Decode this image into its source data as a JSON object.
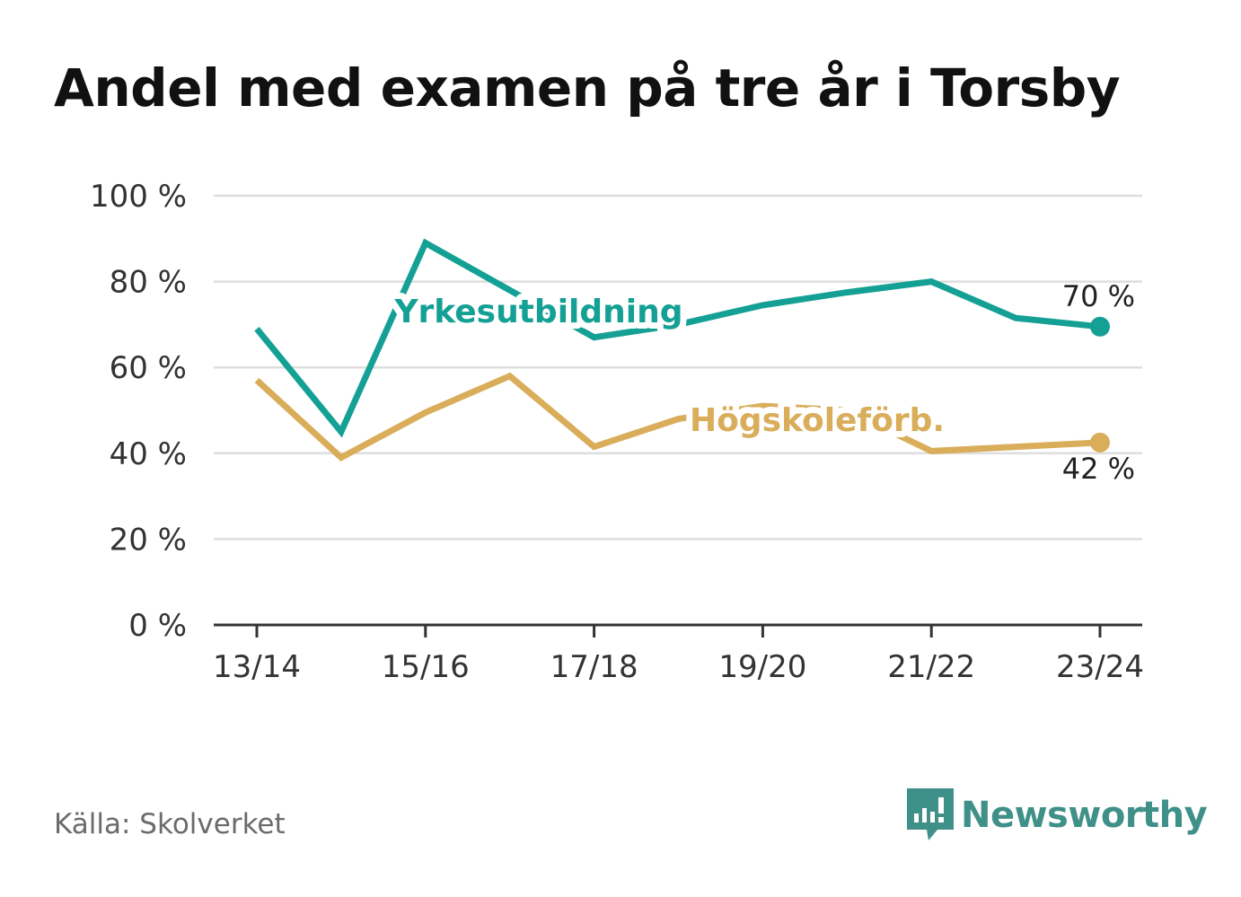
{
  "chart_data": {
    "type": "line",
    "title": "Andel med examen på tre år i Torsby",
    "x": [
      "13/14",
      "14/15",
      "15/16",
      "16/17",
      "17/18",
      "18/19",
      "19/20",
      "20/21",
      "21/22",
      "22/23",
      "23/24"
    ],
    "x_tick_labels": [
      "13/14",
      "15/16",
      "17/18",
      "19/20",
      "21/22",
      "23/24"
    ],
    "y_ticks": [
      "0 %",
      "20 %",
      "40 %",
      "60 %",
      "80 %",
      "100 %"
    ],
    "ylim": [
      0,
      100
    ],
    "grid": true,
    "series": [
      {
        "name": "Yrkesutbildning",
        "color": "#14a095",
        "values": [
          69,
          45,
          89,
          78,
          67,
          70,
          74.5,
          77.5,
          80,
          71.5,
          69.5
        ],
        "end_label": "70 %"
      },
      {
        "name": "Högskoleförb.",
        "color": "#d9ad5a",
        "values": [
          57,
          39,
          49.5,
          58,
          41.5,
          48,
          51,
          50,
          40.5,
          41.5,
          42.5
        ],
        "end_label": "42 %"
      }
    ]
  },
  "source": "Källa: Skolverket",
  "brand": {
    "name": "Newsworthy",
    "icon": "newsworthy-logo-icon",
    "color": "#3f9089"
  }
}
